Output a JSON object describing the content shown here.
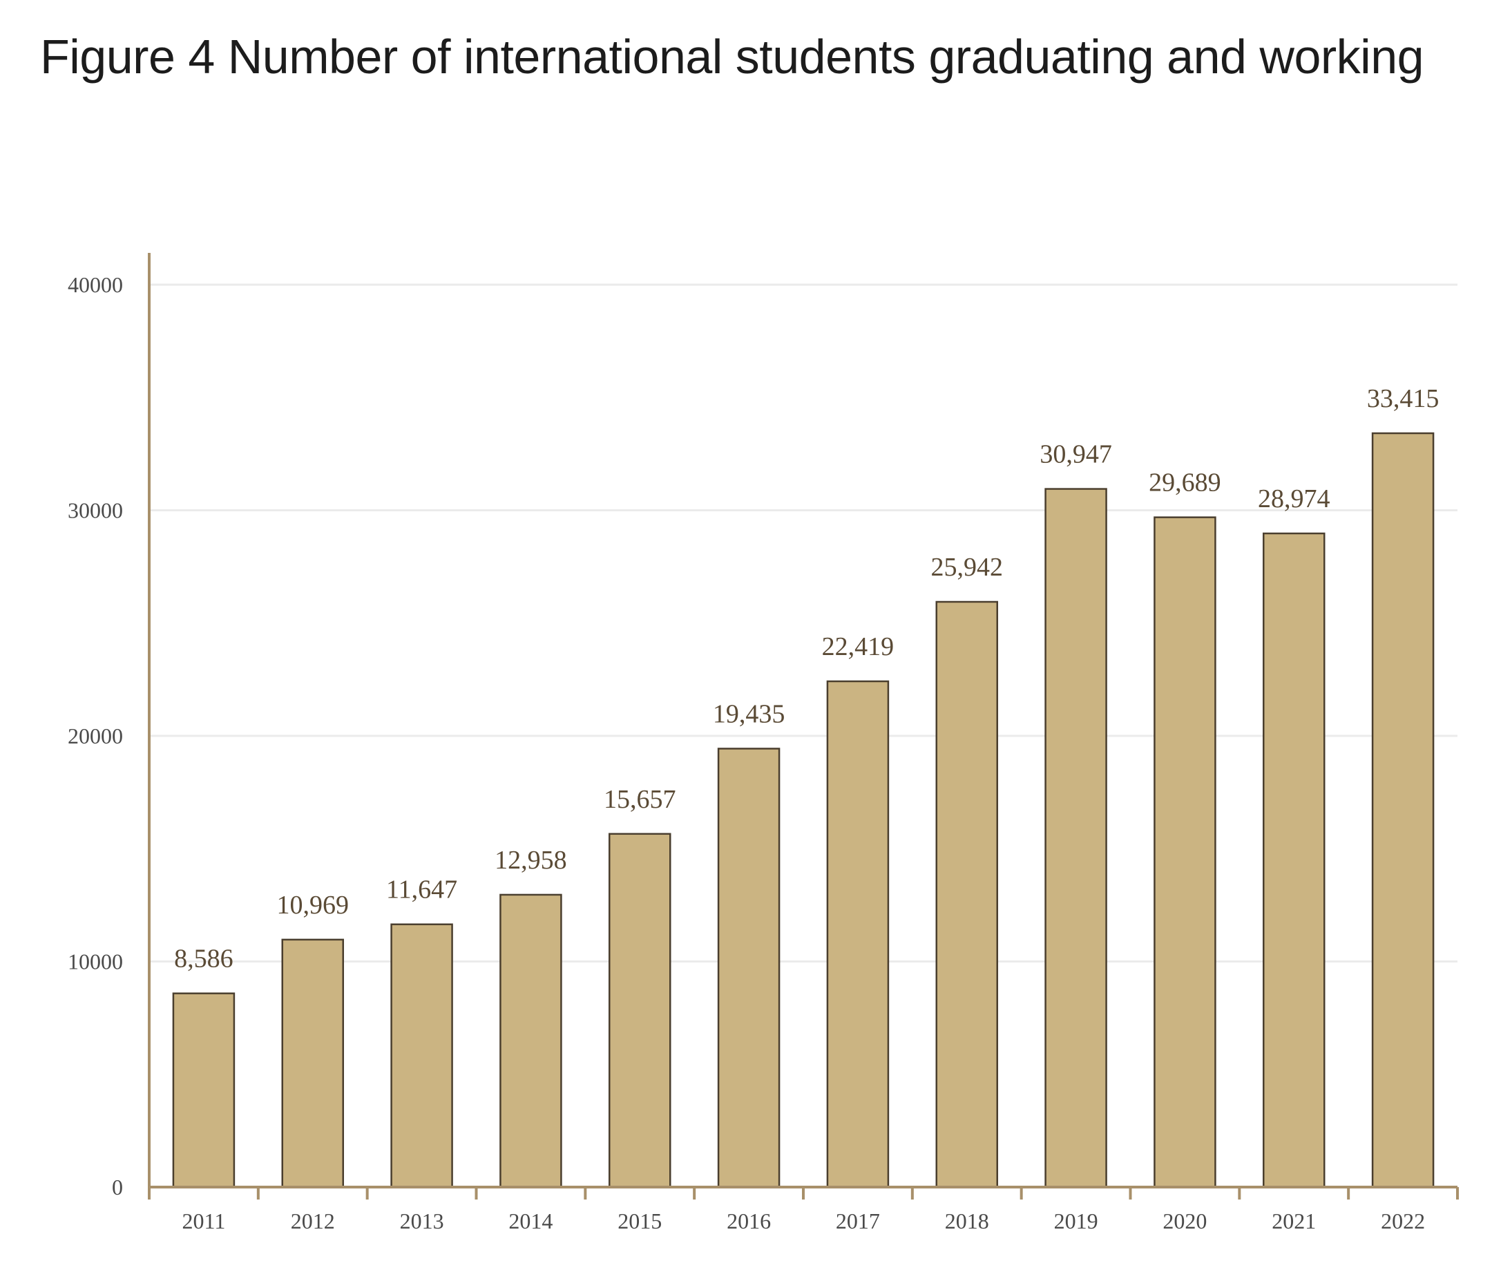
{
  "title": "Figure 4 Number of international students graduating and working",
  "chart_data": {
    "type": "bar",
    "categories": [
      "2011",
      "2012",
      "2013",
      "2014",
      "2015",
      "2016",
      "2017",
      "2018",
      "2019",
      "2020",
      "2021",
      "2022"
    ],
    "values": [
      8586,
      10969,
      11647,
      12958,
      15657,
      19435,
      22419,
      25942,
      30947,
      29689,
      28974,
      33415
    ],
    "data_labels": [
      "8,586",
      "10,969",
      "11,647",
      "12,958",
      "15,657",
      "19,435",
      "22,419",
      "25,942",
      "30,947",
      "29,689",
      "28,974",
      "33,415"
    ],
    "title": "Figure 4 Number of international students graduating and working",
    "xlabel": "",
    "ylabel": "",
    "ylim": [
      0,
      40000
    ],
    "yticks": [
      0,
      10000,
      20000,
      30000,
      40000
    ],
    "ytick_labels": [
      "0",
      "10000",
      "20000",
      "30000",
      "40000"
    ],
    "grid": true,
    "legend": "none",
    "colors": {
      "bar_fill": "#cbb482",
      "bar_stroke": "#4a3e2e",
      "axis": "#a8906a",
      "grid": "#ebebeb",
      "data_label": "#5a4a35",
      "tick_label": "#4a4a4a"
    }
  }
}
